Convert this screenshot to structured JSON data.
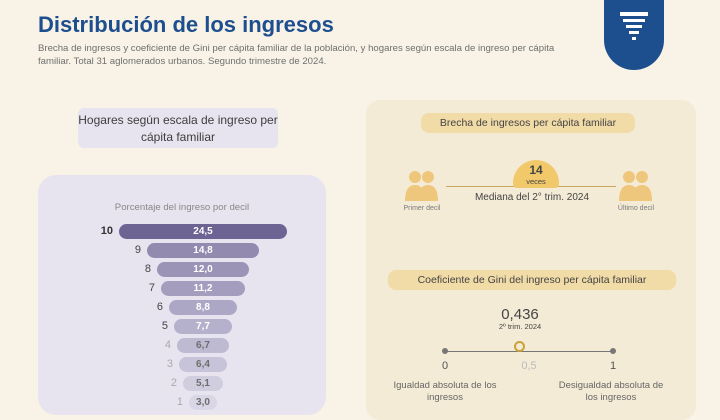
{
  "header": {
    "title": "Distribución de los ingresos",
    "subtitle": "Brecha de ingresos y coeficiente de Gini per cápita familiar de la población, y hogares según escala de ingreso per cápita familiar. Total 31 aglomerados urbanos. Segundo trimestre de 2024."
  },
  "logo": {
    "icon": "funnel-list-icon",
    "color": "#1d4f8f"
  },
  "left": {
    "header": "Hogares según escala de ingreso per cápita familiar",
    "caption": "Porcentaje del ingreso por decil",
    "deciles": [
      {
        "decil": "10",
        "value": "24,5"
      },
      {
        "decil": "9",
        "value": "14,8"
      },
      {
        "decil": "8",
        "value": "12,0"
      },
      {
        "decil": "7",
        "value": "11,2"
      },
      {
        "decil": "6",
        "value": "8,8"
      },
      {
        "decil": "5",
        "value": "7,7"
      },
      {
        "decil": "4",
        "value": "6,7"
      },
      {
        "decil": "3",
        "value": "6,4"
      },
      {
        "decil": "2",
        "value": "5,1"
      },
      {
        "decil": "1",
        "value": "3,0"
      }
    ]
  },
  "brecha": {
    "title": "Brecha de ingresos per cápita familiar",
    "times_value": "14",
    "times_label": "veces",
    "median_label": "Mediana del 2° trim. 2024",
    "first_decile": "Primer decil",
    "last_decile": "Último decil"
  },
  "gini": {
    "title": "Coeficiente de Gini del ingreso per cápita familiar",
    "value": "0,436",
    "period": "2º trim. 2024",
    "scale_min": "0",
    "scale_mid": "0,5",
    "scale_max": "1",
    "min_caption": "Igualdad absoluta de los ingresos",
    "max_caption": "Desigualdad absoluta de los ingresos"
  },
  "colors": {
    "accent": "#1d4f8f",
    "funnel_dark": "#6e6494",
    "funnel_light": "#d9d6e6",
    "gold": "#f1c86a"
  }
}
